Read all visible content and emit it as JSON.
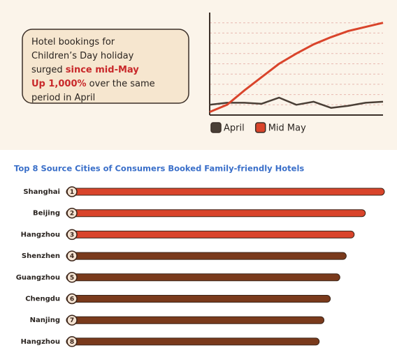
{
  "callout": {
    "lines": [
      [
        {
          "text": "Hotel bookings for",
          "highlight": false
        }
      ],
      [
        {
          "text": "Children’s Day holiday",
          "highlight": false
        }
      ],
      [
        {
          "text": "surged ",
          "highlight": false
        },
        {
          "text": "since mid-May",
          "highlight": true
        }
      ],
      [
        {
          "text": "Up 1,000%",
          "highlight": true
        },
        {
          "text": " over the same",
          "highlight": false
        }
      ],
      [
        {
          "text": "period in April",
          "highlight": false
        }
      ]
    ],
    "highlight_color": "#c8282a"
  },
  "chart_data": [
    {
      "type": "line",
      "x": [
        0,
        1,
        2,
        3,
        4,
        5,
        6,
        7,
        8,
        9,
        10
      ],
      "xlim": [
        0,
        10
      ],
      "ylim": [
        0,
        100
      ],
      "grid": true,
      "series": [
        {
          "name": "April",
          "color": "#4a3f36",
          "values": [
            10,
            12,
            12,
            11,
            17,
            10,
            13,
            7,
            9,
            12,
            13
          ]
        },
        {
          "name": "Mid May",
          "color": "#d9442b",
          "values": [
            3,
            10,
            24,
            37,
            50,
            60,
            69,
            76,
            82,
            86,
            90
          ]
        }
      ]
    },
    {
      "type": "hbar",
      "title": "Top 8 Source Cities of Consumers Booked Family-friendly Hotels",
      "categories": [
        "Shanghai",
        "Beijing",
        "Hangzhou",
        "Shenzhen",
        "Guangzhou",
        "Chengdu",
        "Nanjing",
        "Hangzhou"
      ],
      "ranks": [
        1,
        2,
        3,
        4,
        5,
        6,
        7,
        8
      ],
      "values": [
        100,
        94,
        90.5,
        88,
        86,
        83,
        81,
        79.5
      ],
      "colors": [
        "#d9442b",
        "#d9442b",
        "#d9442b",
        "#7a3a1c",
        "#7a3a1c",
        "#7a3a1c",
        "#7a3a1c",
        "#7a3a1c"
      ],
      "xlim": [
        0,
        100
      ]
    }
  ]
}
